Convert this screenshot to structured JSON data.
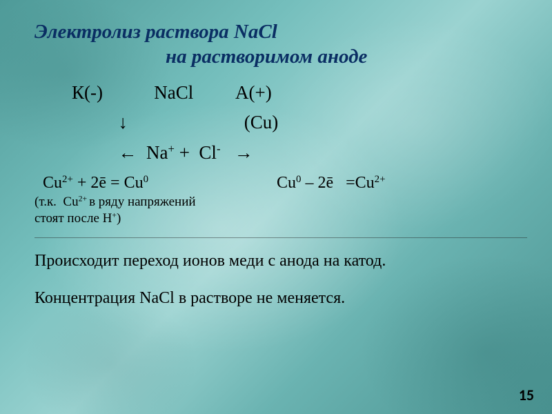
{
  "colors": {
    "title": "#0a2e63",
    "body": "#000000",
    "bg_base": "#6fb7b5"
  },
  "fonts": {
    "family": "Times New Roman",
    "title_size_pt": 22,
    "body_size_pt": 18,
    "small_size_pt": 14,
    "title_italic": true,
    "title_bold": true
  },
  "title": {
    "line1": "Электролиз раствора NaCl",
    "line2": "на растворимом аноде"
  },
  "scheme": {
    "cathode_label": "К(-)",
    "center_label": "NaCl",
    "anode_label": "А(+)",
    "arrow_down": "↓",
    "anode_material": "(Cu)",
    "dissoc_left": "←  Na",
    "dissoc_na_charge": "+",
    "dissoc_mid": " +  Cl",
    "dissoc_cl_charge": "-",
    "dissoc_right": "   →"
  },
  "equations": {
    "cathode_lhs_species": "Cu",
    "cathode_lhs_charge": "2+",
    "cathode_plus": " + 2ē = Cu",
    "cathode_rhs_charge": "0",
    "anode_lhs_species": "Cu",
    "anode_lhs_charge": "0",
    "anode_mid": " – 2ē   =Cu",
    "anode_rhs_charge": "2+"
  },
  "note": {
    "line1_a": "(т.к.  Cu",
    "line1_sup": "2+ ",
    "line1_b": "в ряду напряжений",
    "line2_a": "стоят после H",
    "line2_sup": "+",
    "line2_b": ")"
  },
  "body": {
    "line1": "Происходит переход ионов меди с анода на катод.",
    "line2": "Концентрация NaCl в растворе не меняется."
  },
  "page_number": "15"
}
